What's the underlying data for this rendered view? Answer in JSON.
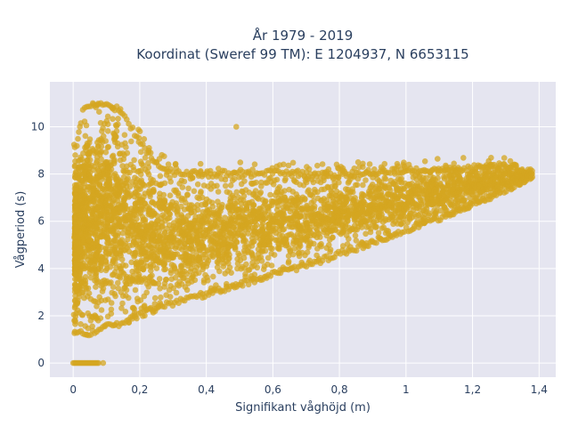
{
  "chart_data": {
    "type": "scatter",
    "title_line1": "År 1979 - 2019",
    "title_line2": "Koordinat (Sweref 99 TM): E 1204937, N 6653115",
    "xlabel": "Signifikant våghöjd (m)",
    "ylabel": "Vågperiod (s)",
    "xlim": [
      -0.07,
      1.45
    ],
    "ylim": [
      -0.6,
      11.9
    ],
    "xticks": [
      0,
      0.2,
      0.4,
      0.6,
      0.8,
      1,
      1.2,
      1.4
    ],
    "xtick_labels": [
      "0",
      "0,2",
      "0,4",
      "0,6",
      "0,8",
      "1",
      "1,2",
      "1,4"
    ],
    "yticks": [
      0,
      2,
      4,
      6,
      8,
      10
    ],
    "ytick_labels": [
      "0",
      "2",
      "4",
      "6",
      "8",
      "10"
    ],
    "grid": true,
    "marker_color": "#d4a520",
    "plot_bg": "#e5e5f0",
    "envelope": {
      "description_points_h_tlow_thigh": [
        [
          0.01,
          1.2,
          9.3
        ],
        [
          0.03,
          1.1,
          10.8
        ],
        [
          0.06,
          1.2,
          11.1
        ],
        [
          0.1,
          1.4,
          11.0
        ],
        [
          0.14,
          1.5,
          10.9
        ],
        [
          0.2,
          1.9,
          9.5
        ],
        [
          0.25,
          2.2,
          8.6
        ],
        [
          0.3,
          2.4,
          8.2
        ],
        [
          0.4,
          2.8,
          8.1
        ],
        [
          0.5,
          3.2,
          8.2
        ],
        [
          0.6,
          3.6,
          8.2
        ],
        [
          0.7,
          4.0,
          8.1
        ],
        [
          0.8,
          4.5,
          8.1
        ],
        [
          0.9,
          5.0,
          8.2
        ],
        [
          1.0,
          5.5,
          8.3
        ],
        [
          1.1,
          6.0,
          8.3
        ],
        [
          1.2,
          6.6,
          8.4
        ],
        [
          1.3,
          7.2,
          8.5
        ],
        [
          1.38,
          7.8,
          8.2
        ]
      ],
      "zero_cluster_h": [
        0.0,
        0.08
      ]
    }
  }
}
